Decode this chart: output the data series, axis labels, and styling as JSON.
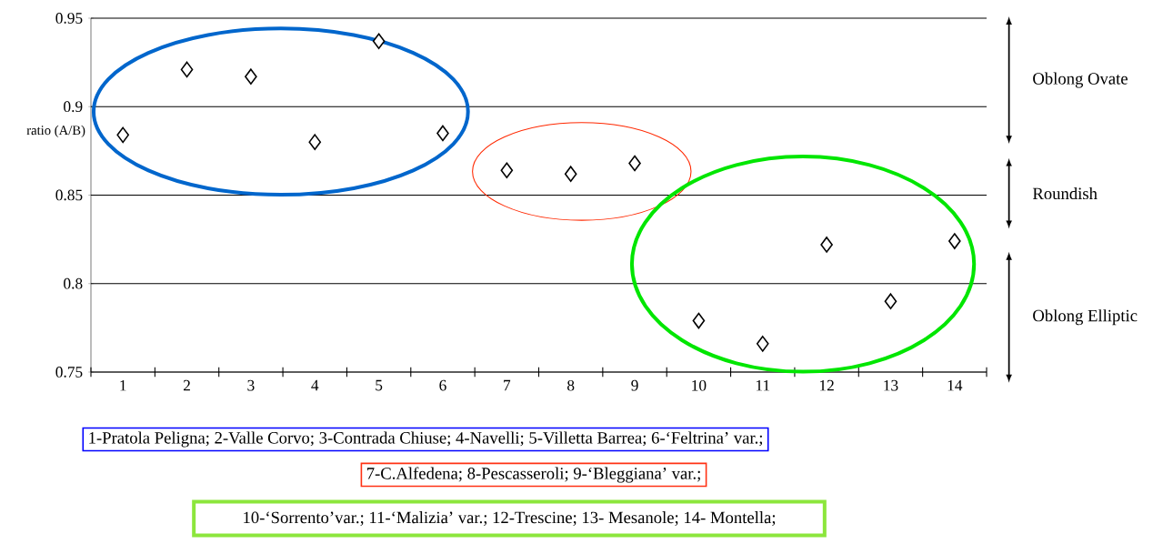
{
  "chart_data": {
    "type": "scatter",
    "ylabel": "ratio (A/B)",
    "categories": [
      "1",
      "2",
      "3",
      "4",
      "5",
      "6",
      "7",
      "8",
      "9",
      "10",
      "11",
      "12",
      "13",
      "14"
    ],
    "series": [
      {
        "color": "#000000",
        "values": [
          0.884,
          0.921,
          0.917,
          0.88,
          0.937,
          0.885,
          0.864,
          0.862,
          0.868,
          0.779,
          0.766,
          0.822,
          0.79,
          0.824
        ]
      }
    ],
    "ylim": [
      0.75,
      0.95
    ],
    "yticks": [
      0.75,
      0.8,
      0.85,
      0.9,
      0.95
    ],
    "grid": "y",
    "marker": "diamond",
    "annotations": [
      "Oblong Ovate",
      "Roundish",
      "Oblong Elliptic",
      "1-Pratola Peligna; 2-Valle Corvo; 3-Contrada Chiuse; 4-Navelli; 5-Villetta Barrea; 6-‘Feltrina’ var.;",
      "7-C.Alfedena; 8-Pescasseroli; 9-‘Bleggiana’ var.;",
      "10-‘Sorrento’var.; 11-‘Malizia’ var.; 12-Trescine; 13- Mesanole; 14- Montella;"
    ]
  }
}
